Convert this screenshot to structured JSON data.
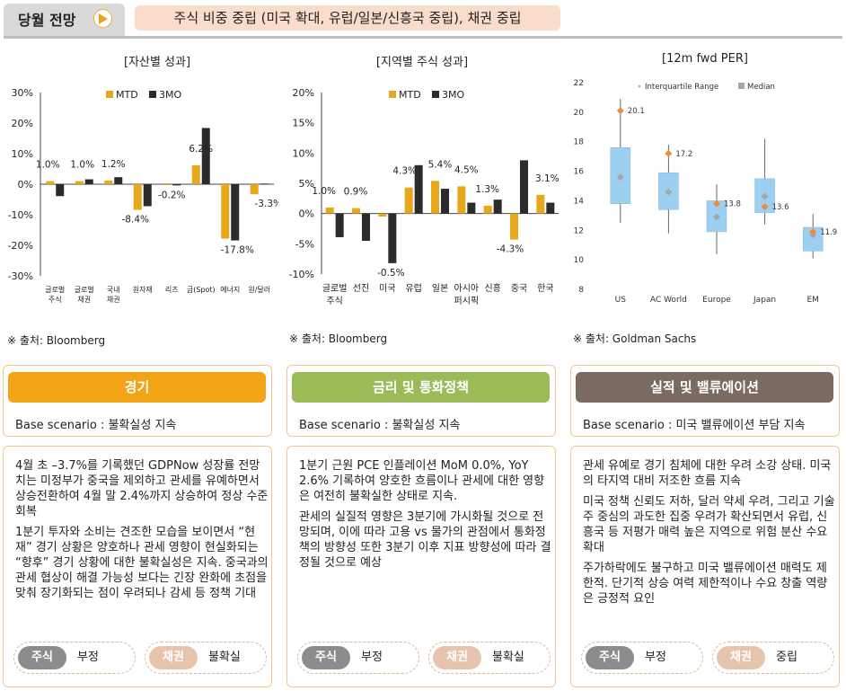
{
  "header": {
    "title": "당월 전망",
    "summary": "주식 비중 중립 (미국 확대, 유럽/일본/신흥국 중립), 채권 중립"
  },
  "chart_data": [
    {
      "type": "bar",
      "title": "[자산별 성과]",
      "legend": [
        "MTD",
        "3MO"
      ],
      "categories": [
        "글로벌 주식",
        "글로벌 채권",
        "국내 채권",
        "원자재",
        "리츠",
        "금(Spot)",
        "에너지",
        "원/달러"
      ],
      "category_lines": [
        [
          "글로벌",
          "주식"
        ],
        [
          "글로벌",
          "채권"
        ],
        [
          "국내",
          "채권"
        ],
        [
          "원자재"
        ],
        [
          "리츠"
        ],
        [
          "금(Spot)"
        ],
        [
          "에너지"
        ],
        [
          "원/달러"
        ]
      ],
      "series": [
        {
          "name": "MTD",
          "color": "#e8a81c",
          "values": [
            1.0,
            1.0,
            1.2,
            -8.4,
            -0.2,
            6.2,
            -17.8,
            -3.3
          ]
        },
        {
          "name": "3MO",
          "color": "#2b2b2b",
          "values": [
            -3.9,
            1.6,
            2.3,
            -7.2,
            -0.4,
            18.4,
            -18.4,
            0.2
          ]
        }
      ],
      "labels": [
        "1.0%",
        "1.0%",
        "1.2%",
        "-8.4%",
        "-0.2%",
        "6.2%",
        "-17.8%",
        "-3.3%"
      ],
      "yticks": [
        "30%",
        "20%",
        "10%",
        "0%",
        "-10%",
        "-20%",
        "-30%"
      ],
      "ylim": [
        -30,
        30
      ],
      "source": "※ 출처: Bloomberg"
    },
    {
      "type": "bar",
      "title": "[지역별 주식 성과]",
      "legend": [
        "MTD",
        "3MO"
      ],
      "categories": [
        "글로벌 주식",
        "선진",
        "미국",
        "유럽",
        "일본",
        "아시아 퍼시픽",
        "신흥",
        "중국",
        "한국"
      ],
      "category_lines": [
        [
          "글로벌",
          "주식"
        ],
        [
          "선진"
        ],
        [
          "미국"
        ],
        [
          "유럽"
        ],
        [
          "일본"
        ],
        [
          "아시아",
          "퍼시픽"
        ],
        [
          "신흥"
        ],
        [
          "중국"
        ],
        [
          "한국"
        ]
      ],
      "series": [
        {
          "name": "MTD",
          "color": "#e8a81c",
          "values": [
            1.0,
            0.9,
            -0.5,
            4.3,
            5.4,
            4.5,
            1.3,
            -4.3,
            3.1
          ]
        },
        {
          "name": "3MO",
          "color": "#2b2b2b",
          "values": [
            -3.9,
            -4.5,
            -8.2,
            8.0,
            4.1,
            1.8,
            2.3,
            8.8,
            1.8
          ]
        }
      ],
      "labels": [
        "1.0%",
        "0.9%",
        "-0.5%",
        "4.3%",
        "5.4%",
        "4.5%",
        "1.3%",
        "-4.3%",
        "3.1%"
      ],
      "yticks": [
        "20%",
        "15%",
        "10%",
        "5%",
        "0%",
        "-5%",
        "-10%"
      ],
      "ylim": [
        -10,
        20
      ],
      "source": "※ 출처: Bloomberg"
    },
    {
      "type": "box",
      "title": "[12m fwd PER]",
      "legend": [
        "Interquartile Range",
        "Median"
      ],
      "categories": [
        "US",
        "AC World",
        "Europe",
        "Japan",
        "EM"
      ],
      "whisker_low": [
        12.5,
        11.8,
        10.4,
        12.4,
        10.1
      ],
      "q1": [
        13.8,
        13.4,
        11.9,
        13.2,
        10.6
      ],
      "q3": [
        17.6,
        15.9,
        14.0,
        15.5,
        12.2
      ],
      "whisker_high": [
        20.9,
        17.8,
        15.1,
        18.2,
        13.1
      ],
      "median": [
        15.6,
        14.6,
        12.9,
        14.3,
        11.7
      ],
      "current": [
        20.1,
        17.2,
        13.8,
        13.6,
        11.9
      ],
      "current_labels": [
        "20.1",
        "17.2",
        "13.8",
        "13.6",
        "11.9"
      ],
      "yticks": [
        "22",
        "20",
        "18",
        "16",
        "14",
        "12",
        "10",
        "8"
      ],
      "ylim": [
        8,
        22
      ],
      "source": "※ 출처: Goldman Sachs"
    }
  ],
  "panels": [
    {
      "title": "경기",
      "color": "#f2a416",
      "scenario": "Base scenario : 불확실성 지속",
      "paragraphs": [
        "4월 초 –3.7%를 기록했던 GDPNow 성장률 전망치는 미정부가 중국을 제외하고 관세를 유예하면서 상승전환하여 4월 말 2.4%까지 상승하여 정상 수준 회복",
        "1분기 투자와 소비는 견조한 모습을 보이면서 “현재” 경기 상황은 양호하나 관세 영향이 현실화되는 “향후” 경기 상황에 대한 불확실성은 지속. 중국과의 관세 협상이 해결 가능성 보다는 긴장 완화에 초점을 맞춰 장기화되는 점이 우려되나 감세 등 정책 기대"
      ],
      "stock_label": "주식",
      "stock_value": "부정",
      "bond_label": "채권",
      "bond_value": "불확실"
    },
    {
      "title": "금리 및 통화정책",
      "color": "#9bbb59",
      "scenario": "Base scenario : 불확실성 지속",
      "paragraphs": [
        "1분기 근원 PCE 인플레이션 MoM 0.0%, YoY  2.6% 기록하여 양호한 흐름이나 관세에 대한 영향은 여전히 불확실한 상태로 지속.",
        "관세의 실질적 영향은 3분기에 가시화될 것으로 전망되며, 이에 따라 고용 vs 물가의 관점에서 통화정책의 방향성 또한 3분기 이후 지표 방향성에 따라 결정될 것으로 예상"
      ],
      "stock_label": "주식",
      "stock_value": "부정",
      "bond_label": "채권",
      "bond_value": "불확실"
    },
    {
      "title": "실적 및 밸류에이션",
      "color": "#7a6a5f",
      "scenario": "Base scenario : 미국 밸류에이션 부담 지속",
      "paragraphs": [
        "관세 유예로 경기 침체에 대한 우려 소강 상태. 미국의 타지역 대비 저조한 흐름 지속",
        "미국 정책 신뢰도 저하, 달러 약세 우려, 그리고 기술주 중심의 과도한 집중 우려가 확산되면서 유럽, 신흥국 등 저평가 매력 높은 지역으로 위험 분산 수요 확대",
        "주가하락에도 불구하고 미국 밸류에이션 매력도 제한적.  단기적 상승 여력 제한적이나 수요 창출 역량은 긍정적 요인"
      ],
      "stock_label": "주식",
      "stock_value": "부정",
      "bond_label": "채권",
      "bond_value": "중립"
    }
  ]
}
